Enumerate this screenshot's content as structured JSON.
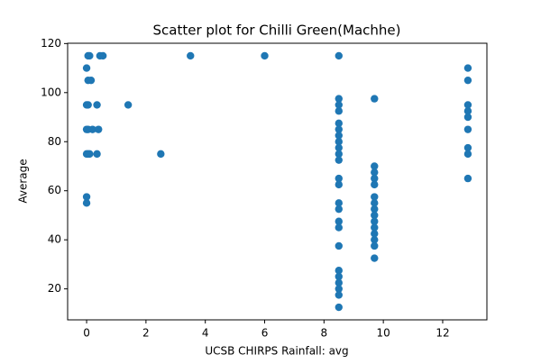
{
  "chart_data": {
    "type": "scatter",
    "title": "Scatter plot for Chilli Green(Machhe)",
    "x_label": "UCSB CHIRPS Rainfall: avg",
    "y_label": "Average",
    "color": "#1f77b4",
    "x": [
      0.05,
      0.1,
      0.45,
      0.55,
      0,
      0.05,
      0.15,
      0,
      0.05,
      0.35,
      0,
      0.05,
      0.2,
      0.4,
      0,
      0.05,
      0.1,
      0.35,
      0,
      0,
      1.4,
      2.5,
      3.5,
      6,
      8.5,
      8.5,
      8.5,
      8.5,
      8.5,
      8.5,
      8.5,
      8.5,
      8.5,
      8.5,
      8.5,
      8.5,
      8.5,
      8.5,
      8.5,
      8.5,
      8.5,
      8.5,
      8.5,
      8.5,
      8.5,
      8.5,
      8.5,
      8.5,
      9.7,
      9.7,
      9.7,
      9.7,
      9.7,
      9.7,
      9.7,
      9.7,
      9.7,
      9.7,
      9.7,
      9.7,
      9.7,
      9.7,
      9.7,
      12.85,
      12.85,
      12.85,
      12.85,
      12.85,
      12.85,
      12.85,
      12.85,
      12.85
    ],
    "y": [
      115,
      115,
      115,
      115,
      110,
      105,
      105,
      95,
      95,
      95,
      85,
      85,
      85,
      85,
      75,
      75,
      75,
      75,
      57.5,
      55,
      95,
      75,
      115,
      115,
      115,
      97.5,
      95,
      92.5,
      87.5,
      85,
      82.5,
      80,
      77.5,
      75,
      72.5,
      65,
      62.5,
      55,
      52.5,
      47.5,
      45,
      37.5,
      27.5,
      25,
      22.5,
      20,
      17.5,
      12.5,
      97.5,
      70,
      67.5,
      65,
      62.5,
      57.5,
      55,
      52.5,
      50,
      47.5,
      45,
      42.5,
      40,
      37.5,
      32.5,
      110,
      105,
      95,
      92.5,
      90,
      85,
      77.5,
      75,
      65
    ],
    "xlim": [
      -0.64,
      13.49
    ],
    "ylim": [
      7.375,
      120.125
    ],
    "xticks": [
      0,
      2,
      4,
      6,
      8,
      10,
      12
    ],
    "yticks": [
      20,
      40,
      60,
      80,
      100,
      120
    ]
  }
}
